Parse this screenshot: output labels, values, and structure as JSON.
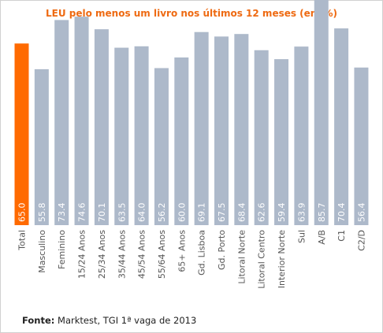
{
  "chart_data": {
    "type": "bar",
    "title": "LEU pelo menos um livro nos últimos 12 meses (em %)",
    "xlabel": "",
    "ylabel": "",
    "ylim": [
      0,
      100
    ],
    "grid": false,
    "legend": "none",
    "categories": [
      "Total",
      "Masculino",
      "Feminino",
      "15/24 Anos",
      "25/34 Anos",
      "35/44 Anos",
      "45/54 Anos",
      "55/64 Anos",
      "65+ Anos",
      "Gd. Lisboa",
      "Gd. Porto",
      "Litoral Norte",
      "Litoral Centro",
      "Interior Norte",
      "Sul",
      "A/B",
      "C1",
      "C2/D"
    ],
    "values": [
      65.0,
      55.8,
      73.4,
      74.6,
      70.1,
      63.5,
      64.0,
      56.2,
      60.0,
      69.1,
      67.5,
      68.4,
      62.6,
      59.4,
      63.9,
      85.7,
      70.4,
      56.4
    ],
    "value_labels": [
      "65.0",
      "55.8",
      "73.4",
      "74.6",
      "70.1",
      "63.5",
      "64.0",
      "56.2",
      "60.0",
      "69.1",
      "67.5",
      "68.4",
      "62.6",
      "59.4",
      "63.9",
      "85.7",
      "70.4",
      "56.4"
    ],
    "highlight_index": 0,
    "colors": {
      "highlight": "#ff6a00",
      "bar": "#adb9ca",
      "label_text": "#ffffff",
      "category_text": "#555555"
    }
  },
  "source": {
    "label": "Fonte:",
    "text": " Marktest, TGI 1ª vaga de 2013"
  }
}
